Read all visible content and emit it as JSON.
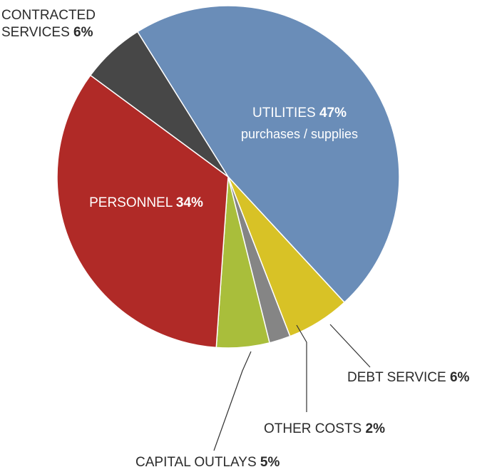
{
  "chart_data": {
    "type": "pie",
    "categories": [
      "UTILITIES",
      "DEBT SERVICE",
      "OTHER COSTS",
      "CAPITAL OUTLAYS",
      "PERSONNEL",
      "CONTRACTED SERVICES"
    ],
    "values": [
      47,
      6,
      2,
      5,
      34,
      6
    ],
    "value_labels": [
      "47%",
      "6%",
      "2%",
      "5%",
      "34%",
      "6%"
    ],
    "colors": [
      "#6a8db8",
      "#d8c226",
      "#858585",
      "#a9be3b",
      "#b02a27",
      "#474747"
    ],
    "annotations": [
      "purchases / supplies"
    ]
  }
}
